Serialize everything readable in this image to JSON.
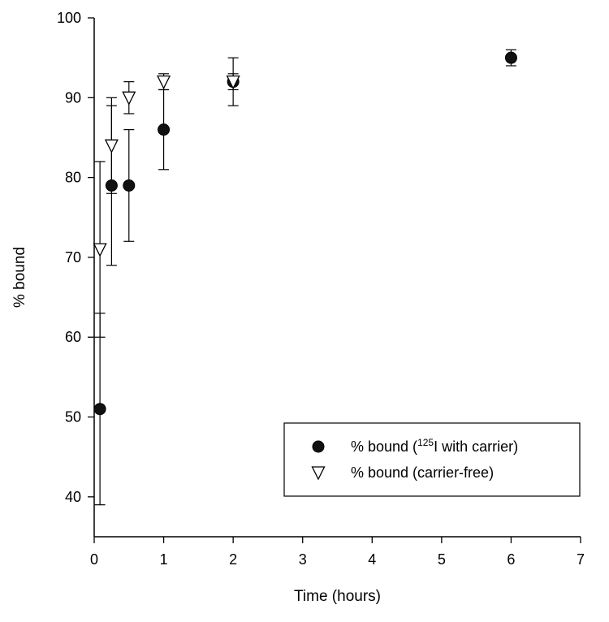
{
  "chart_data": {
    "type": "scatter",
    "title": "",
    "xlabel": "Time (hours)",
    "ylabel": "% bound",
    "xlim": [
      0,
      7
    ],
    "ylim": [
      35,
      100
    ],
    "x_ticks": [
      0,
      1,
      2,
      3,
      4,
      5,
      6,
      7
    ],
    "y_ticks": [
      40,
      50,
      60,
      70,
      80,
      90,
      100
    ],
    "x_tick_labels": [
      "0",
      "1",
      "2",
      "3",
      "4",
      "5",
      "6",
      "7"
    ],
    "y_tick_labels": [
      "40",
      "50",
      "60",
      "70",
      "80",
      "90",
      "100"
    ],
    "grid": false,
    "legend_position": "bottom-right",
    "series": [
      {
        "name_prefix": "% bound (",
        "name_sup": "125",
        "name_suffix": "I with carrier)",
        "marker": "filled-circle",
        "color": "#000000",
        "points": [
          {
            "x": 0.083,
            "y": 51,
            "y_low": 39,
            "y_high": 63
          },
          {
            "x": 0.25,
            "y": 79,
            "y_low": 69,
            "y_high": 89
          },
          {
            "x": 0.5,
            "y": 79,
            "y_low": 72,
            "y_high": 86
          },
          {
            "x": 1,
            "y": 86,
            "y_low": 81,
            "y_high": 91
          },
          {
            "x": 2,
            "y": 92,
            "y_low": 89,
            "y_high": 95
          },
          {
            "x": 6,
            "y": 95,
            "y_low": 94,
            "y_high": 96
          }
        ]
      },
      {
        "name": "% bound (carrier-free)",
        "marker": "open-triangle-down",
        "color": "#000000",
        "points": [
          {
            "x": 0.083,
            "y": 71,
            "y_low": 60,
            "y_high": 82
          },
          {
            "x": 0.25,
            "y": 84,
            "y_low": 78,
            "y_high": 90
          },
          {
            "x": 0.5,
            "y": 90,
            "y_low": 88,
            "y_high": 92
          },
          {
            "x": 1,
            "y": 92,
            "y_low": 91,
            "y_high": 93
          },
          {
            "x": 2,
            "y": 92,
            "y_low": 91,
            "y_high": 93
          }
        ]
      }
    ]
  }
}
